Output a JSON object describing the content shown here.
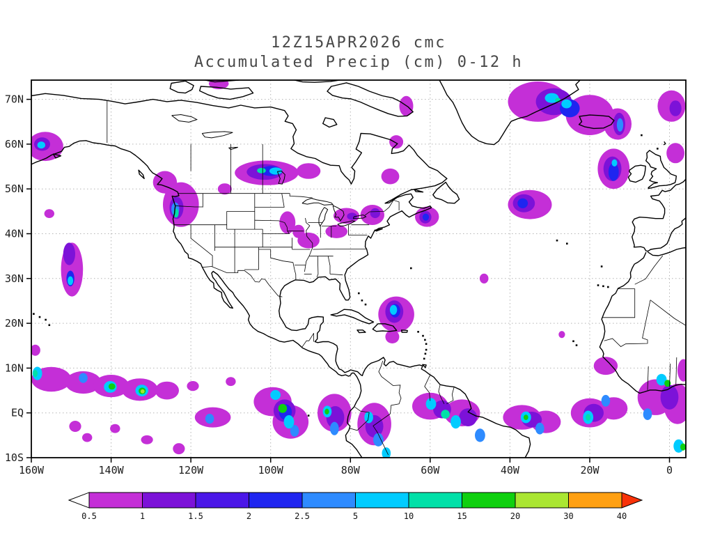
{
  "title": {
    "line1": "12Z15APR2026 cmc",
    "line2": "Accumulated Precip (cm) 0-12 h"
  },
  "map": {
    "extent": {
      "lon_min": -160,
      "lon_max": 4.1,
      "lat_min": -10,
      "lat_max": 74.3
    },
    "lat_ticks": [
      {
        "v": 70,
        "label": "70N"
      },
      {
        "v": 60,
        "label": "60N"
      },
      {
        "v": 50,
        "label": "50N"
      },
      {
        "v": 40,
        "label": "40N"
      },
      {
        "v": 30,
        "label": "30N"
      },
      {
        "v": 20,
        "label": "20N"
      },
      {
        "v": 10,
        "label": "10N"
      },
      {
        "v": 0,
        "label": "EQ"
      },
      {
        "v": -10,
        "label": "10S"
      }
    ],
    "lon_ticks": [
      {
        "v": -160,
        "label": "160W"
      },
      {
        "v": -140,
        "label": "140W"
      },
      {
        "v": -120,
        "label": "120W"
      },
      {
        "v": -100,
        "label": "100W"
      },
      {
        "v": -80,
        "label": "80W"
      },
      {
        "v": -60,
        "label": "60W"
      },
      {
        "v": -40,
        "label": "40W"
      },
      {
        "v": -20,
        "label": "20W"
      },
      {
        "v": 0,
        "label": "0"
      }
    ]
  },
  "colorbar": {
    "labels": [
      "0.5",
      "1",
      "1.5",
      "2",
      "2.5",
      "5",
      "10",
      "15",
      "20",
      "30",
      "40"
    ]
  },
  "chart_data": {
    "type": "heatmap",
    "title": "Accumulated Precip (cm) 0-12 h",
    "model": "cmc",
    "init_time": "12Z15APR2026",
    "units": "cm",
    "levels": [
      0.5,
      1,
      1.5,
      2,
      2.5,
      5,
      10,
      15,
      20,
      30,
      40
    ],
    "colors": [
      "#ffffff",
      "#c42fd7",
      "#7c12d8",
      "#4b17e8",
      "#1f25f0",
      "#2e8bff",
      "#00ccff",
      "#00e0a8",
      "#0fd00f",
      "#aae632",
      "#ffa012",
      "#f83208"
    ],
    "cell_format": "[lon_deg, lat_deg, width_deg, height_deg, level_index]",
    "cells": [
      [
        -156.5,
        59.5,
        9,
        6.5,
        1
      ],
      [
        -157.3,
        60,
        4,
        3,
        2
      ],
      [
        -157.5,
        59.8,
        2,
        1.6,
        6
      ],
      [
        -155.5,
        44.5,
        2.5,
        2,
        1
      ],
      [
        -149.8,
        32,
        5.5,
        12,
        1
      ],
      [
        -150.5,
        35.5,
        3,
        5,
        2
      ],
      [
        -150.2,
        30,
        2,
        3.5,
        4
      ],
      [
        -150.2,
        29.5,
        1.4,
        2,
        6
      ],
      [
        -159,
        14,
        2.5,
        2.5,
        1
      ],
      [
        -122.5,
        46.5,
        9,
        10,
        1
      ],
      [
        -126.5,
        51.5,
        6,
        5,
        1
      ],
      [
        -123.6,
        45.8,
        3.5,
        5,
        2
      ],
      [
        -123.9,
        45.5,
        2,
        3,
        5
      ],
      [
        -123.7,
        44.6,
        1.3,
        2,
        7
      ],
      [
        -111.5,
        50,
        3.5,
        2.5,
        1
      ],
      [
        -101,
        53.6,
        16,
        5.5,
        1
      ],
      [
        -90.5,
        54,
        6,
        3.5,
        1
      ],
      [
        -101.5,
        53.8,
        9,
        3.5,
        2
      ],
      [
        -100,
        54,
        5,
        2.2,
        4
      ],
      [
        -98.7,
        54,
        3.2,
        1.6,
        6
      ],
      [
        -102.3,
        54.1,
        2.2,
        1.2,
        7
      ],
      [
        -113,
        73.5,
        5,
        2.5,
        1
      ],
      [
        -95.8,
        42.5,
        4,
        5,
        1
      ],
      [
        -93,
        40.5,
        3,
        3,
        1
      ],
      [
        -90.5,
        38.5,
        5.5,
        3.5,
        1
      ],
      [
        -83.5,
        40.5,
        5.5,
        3,
        1
      ],
      [
        -81,
        44,
        6.5,
        3.5,
        1
      ],
      [
        -79.6,
        43.9,
        2.5,
        1.6,
        2
      ],
      [
        -74.5,
        44.2,
        6,
        4.5,
        1
      ],
      [
        -73.8,
        44.6,
        2.5,
        2.2,
        2
      ],
      [
        -70,
        52.8,
        4.5,
        3.5,
        1
      ],
      [
        -68.5,
        60.5,
        3.5,
        3,
        1
      ],
      [
        -66,
        68.5,
        3.5,
        4.5,
        1
      ],
      [
        -60.8,
        43.8,
        6,
        4.5,
        1
      ],
      [
        -61.2,
        43.7,
        3,
        2.8,
        2
      ],
      [
        -61.1,
        43.7,
        1.6,
        1.6,
        4
      ],
      [
        -35,
        46.5,
        11,
        6.5,
        1
      ],
      [
        -36.5,
        46.8,
        5.5,
        4,
        2
      ],
      [
        -36.8,
        46.8,
        2.6,
        2.2,
        4
      ],
      [
        -46.5,
        30,
        2.2,
        2.2,
        1
      ],
      [
        -27,
        17.5,
        1.6,
        1.6,
        1
      ],
      [
        -33,
        69.5,
        15,
        9,
        1
      ],
      [
        -20,
        66.5,
        12,
        9,
        1
      ],
      [
        -29,
        69.5,
        9,
        6,
        2
      ],
      [
        -25,
        68,
        5,
        4,
        4
      ],
      [
        -29.5,
        70.3,
        3.5,
        2.2,
        6
      ],
      [
        -25.8,
        69,
        2.6,
        2,
        6
      ],
      [
        -28,
        69.8,
        1.4,
        1.1,
        7
      ],
      [
        -13,
        64.5,
        7,
        7,
        1
      ],
      [
        -12.6,
        64.5,
        3,
        5,
        2
      ],
      [
        -12.4,
        64.3,
        1.6,
        3,
        5
      ],
      [
        0.5,
        68.5,
        7,
        7,
        1
      ],
      [
        1.5,
        68,
        3,
        3.5,
        2
      ],
      [
        -14,
        54.5,
        8,
        9,
        1
      ],
      [
        -14.3,
        54.5,
        4.5,
        5.5,
        2
      ],
      [
        -14,
        53.8,
        2.6,
        4,
        4
      ],
      [
        -13.8,
        55.8,
        1.4,
        1.6,
        6
      ],
      [
        1.5,
        58,
        4.5,
        4.5,
        1
      ],
      [
        -68.5,
        22,
        9,
        8,
        1
      ],
      [
        -69,
        22.6,
        4.5,
        5,
        2
      ],
      [
        -68.8,
        22.8,
        2.6,
        3,
        4
      ],
      [
        -69.2,
        23,
        1.8,
        2.2,
        6
      ],
      [
        -69.5,
        17,
        3.5,
        3,
        1
      ],
      [
        -155,
        7.5,
        10,
        5.5,
        1
      ],
      [
        -158.5,
        8.8,
        2.4,
        3,
        6
      ],
      [
        -159,
        8.8,
        1.2,
        1.6,
        7
      ],
      [
        -147,
        6.8,
        9,
        5,
        1
      ],
      [
        -147,
        7.8,
        2.2,
        2.2,
        5
      ],
      [
        -140,
        6,
        9,
        5,
        1
      ],
      [
        -140.2,
        5.8,
        3.2,
        2.6,
        6
      ],
      [
        -139.8,
        5.9,
        1.7,
        1.4,
        8
      ],
      [
        -132.8,
        5.2,
        9,
        5,
        1
      ],
      [
        -132.3,
        5,
        3.2,
        2.6,
        6
      ],
      [
        -132.2,
        4.9,
        1.8,
        1.5,
        8
      ],
      [
        -132.1,
        4.8,
        1,
        0.9,
        9
      ],
      [
        -126,
        5,
        6,
        4,
        1
      ],
      [
        -119.5,
        6,
        3,
        2.2,
        1
      ],
      [
        -110,
        7,
        2.5,
        2,
        1
      ],
      [
        -114.5,
        -1,
        9,
        4.5,
        1
      ],
      [
        -115.3,
        -1.3,
        2.2,
        2.2,
        5
      ],
      [
        -149,
        -3,
        3,
        2.5,
        1
      ],
      [
        -146,
        -5.5,
        2.5,
        2,
        1
      ],
      [
        -139,
        -3.5,
        2.5,
        2,
        1
      ],
      [
        -131,
        -6,
        3,
        2,
        1
      ],
      [
        -123,
        -8,
        3,
        2.5,
        1
      ],
      [
        -99.5,
        2.5,
        9.5,
        6.5,
        1
      ],
      [
        -95,
        -2,
        9,
        7.5,
        1
      ],
      [
        -96.5,
        0.5,
        5.5,
        5,
        2
      ],
      [
        -96.3,
        0.2,
        3.2,
        3.5,
        4
      ],
      [
        -98.8,
        4,
        2.6,
        2.2,
        6
      ],
      [
        -97,
        1,
        2.2,
        2,
        8
      ],
      [
        -95.4,
        -2,
        2.6,
        3,
        6
      ],
      [
        -94,
        -4,
        2.2,
        2.6,
        5
      ],
      [
        -84,
        0,
        8.5,
        8.5,
        1
      ],
      [
        -83.8,
        -1,
        4.5,
        5,
        2
      ],
      [
        -85.8,
        0.3,
        2.2,
        2.6,
        6
      ],
      [
        -84,
        -3.5,
        2.2,
        3,
        5
      ],
      [
        -85.9,
        0.3,
        1.1,
        1.3,
        8
      ],
      [
        -74,
        -2.5,
        8.5,
        9.5,
        1
      ],
      [
        -74,
        -3,
        4.5,
        5,
        2
      ],
      [
        -75.4,
        -1,
        2.2,
        2.6,
        6
      ],
      [
        -73,
        -6,
        2.6,
        3,
        5
      ],
      [
        -71,
        -9,
        2.2,
        2.6,
        6
      ],
      [
        -60,
        1.5,
        9,
        6,
        1
      ],
      [
        -52,
        0,
        9,
        6,
        1
      ],
      [
        -57,
        0.8,
        4.5,
        4,
        2
      ],
      [
        -50.5,
        -1,
        4.5,
        4,
        2
      ],
      [
        -59.8,
        2,
        2.6,
        2.6,
        6
      ],
      [
        -56.2,
        -0.3,
        2.2,
        2,
        7
      ],
      [
        -53.6,
        -2,
        2.6,
        3,
        6
      ],
      [
        -47.5,
        -5,
        2.6,
        3,
        5
      ],
      [
        -37,
        -1,
        9.5,
        5.5,
        1
      ],
      [
        -31,
        -2,
        7.5,
        5,
        1
      ],
      [
        -34.5,
        -1.5,
        5,
        3.5,
        2
      ],
      [
        -36,
        -1,
        2.6,
        2.6,
        6
      ],
      [
        -32.5,
        -3.5,
        2.2,
        2.6,
        5
      ],
      [
        -36,
        -1,
        1.2,
        1.2,
        8
      ],
      [
        -20,
        0,
        9.5,
        6.5,
        1
      ],
      [
        -14,
        1,
        7,
        5,
        1
      ],
      [
        -19,
        0,
        5,
        4,
        2
      ],
      [
        -20.4,
        -1,
        2.6,
        3,
        6
      ],
      [
        -16,
        2.7,
        2.2,
        2.6,
        5
      ],
      [
        -20.4,
        -1,
        1.3,
        1.5,
        7
      ],
      [
        -16,
        10.5,
        6,
        4,
        1
      ],
      [
        -3.5,
        3.5,
        9,
        8,
        1
      ],
      [
        2,
        2,
        7,
        9,
        1
      ],
      [
        0,
        3.5,
        4.5,
        5.5,
        2
      ],
      [
        -2,
        7.4,
        2.6,
        2.6,
        6
      ],
      [
        -0.5,
        6.6,
        1.6,
        1.6,
        8
      ],
      [
        -5.5,
        -0.3,
        2.2,
        2.6,
        5
      ],
      [
        2.3,
        -7.4,
        2.6,
        3,
        6
      ],
      [
        3.4,
        -7.6,
        1.4,
        1.6,
        8
      ],
      [
        3.5,
        9.5,
        3,
        5,
        1
      ]
    ]
  }
}
